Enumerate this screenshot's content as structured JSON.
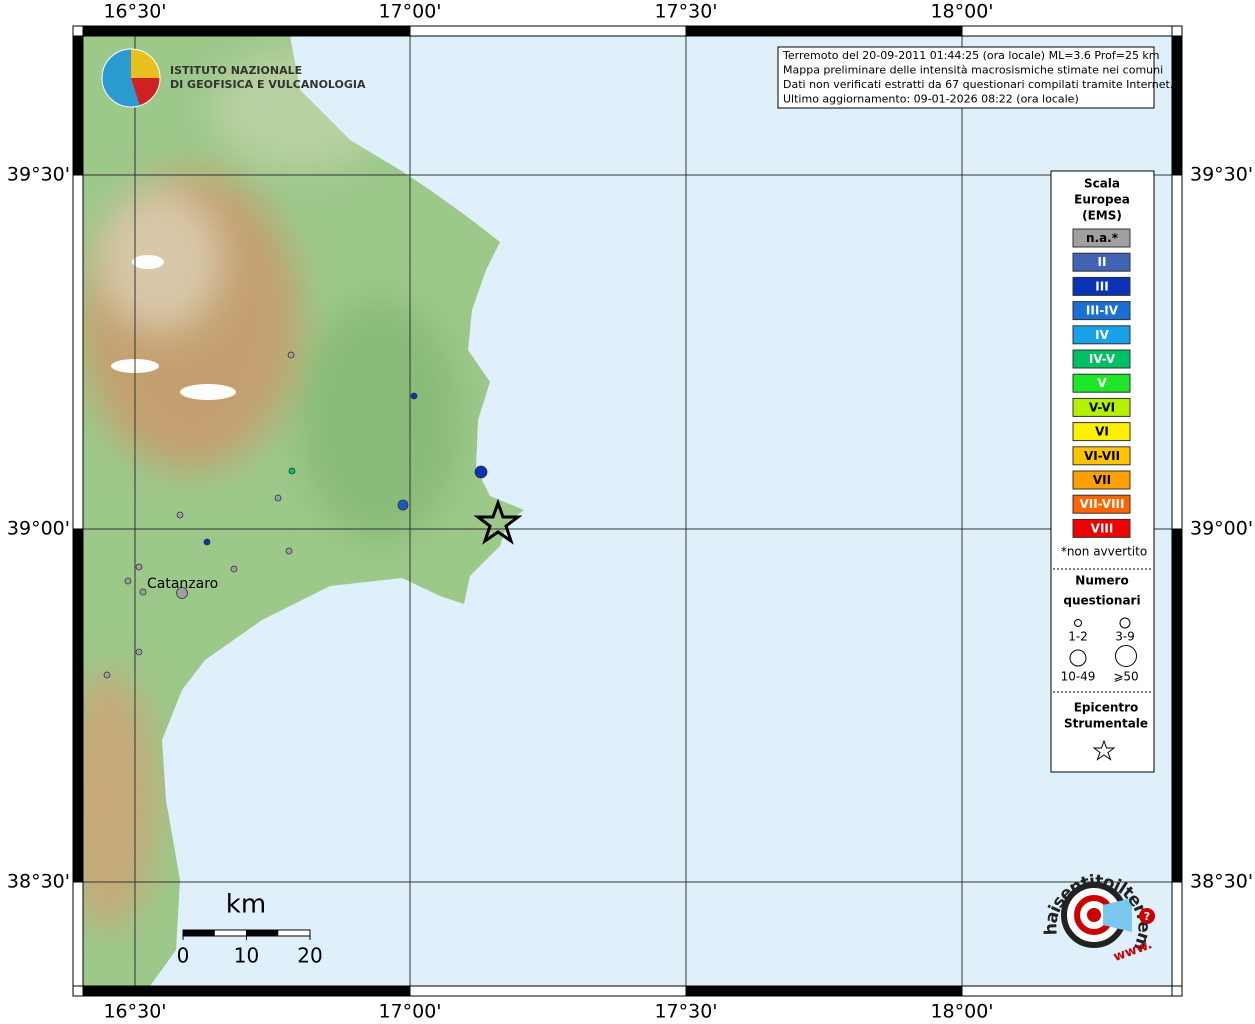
{
  "map": {
    "lon_labels": [
      "16°30'",
      "17°00'",
      "17°30'",
      "18°00'"
    ],
    "lat_labels": [
      "39°30'",
      "39°00'",
      "38°30'"
    ],
    "info": [
      "Terremoto del 20-09-2011 01:44:25 (ora locale) ML=3.6 Prof=25 km",
      "Mappa preliminare delle intensità macrosismiche stimate nei comuni",
      "Dati non verificati estratti da 67 questionari compilati tramite Internet.",
      "Ultimo aggiornamento: 09-01-2026 08:22 (ora locale)"
    ],
    "institute": [
      "ISTITUTO NAZIONALE",
      "DI GEOFISICA E VULCANOLOGIA"
    ],
    "place": "Catanzaro",
    "scale": {
      "unit": "km",
      "ticks": [
        0,
        10,
        20
      ]
    }
  },
  "legend": {
    "title": [
      "Scala",
      "Europea",
      "(EMS)"
    ],
    "classes": [
      {
        "label": "n.a.*",
        "color": "#a0a0a0"
      },
      {
        "label": "II",
        "color": "#4163b4"
      },
      {
        "label": "III",
        "color": "#0a32b4"
      },
      {
        "label": "III-IV",
        "color": "#1a70d2"
      },
      {
        "label": "IV",
        "color": "#1aa0e6"
      },
      {
        "label": "IV-V",
        "color": "#00c064"
      },
      {
        "label": "V",
        "color": "#1ee628"
      },
      {
        "label": "V-VI",
        "color": "#b4f000"
      },
      {
        "label": "VI",
        "color": "#fff000"
      },
      {
        "label": "VI-VII",
        "color": "#ffc400"
      },
      {
        "label": "VII",
        "color": "#ffa000"
      },
      {
        "label": "VII-VIII",
        "color": "#ff6400"
      },
      {
        "label": "VIII",
        "color": "#f00000"
      }
    ],
    "note": "*non avvertito",
    "count_title": [
      "Numero",
      "questionari"
    ],
    "count_sizes": [
      "1-2",
      "3-9",
      "10-49",
      "⩾50"
    ],
    "epicenter_title": [
      "Epicentro",
      "Strumentale"
    ]
  },
  "badge": {
    "text": "haisentitoilterremoto.it",
    "prefix": "www.",
    "mark": "?"
  }
}
